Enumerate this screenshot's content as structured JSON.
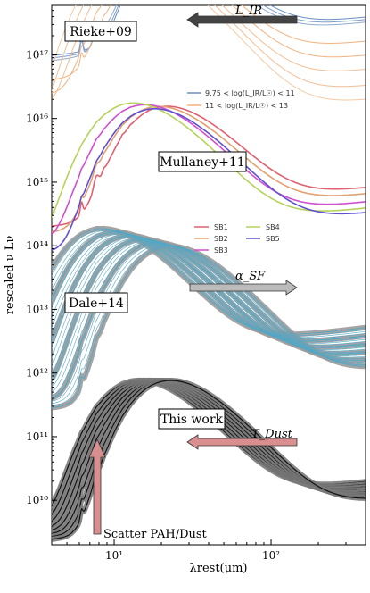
{
  "chart_data": {
    "type": "line",
    "xlabel": "λrest(μm)",
    "ylabel": "rescaled ν Lν",
    "xscale": "log",
    "yscale": "log",
    "xlim": [
      4,
      400
    ],
    "ylim": [
      2000000000.0,
      6e+17
    ],
    "xticks": [
      {
        "value": 10,
        "label": "10¹"
      },
      {
        "value": 100,
        "label": "10²"
      }
    ],
    "yticks": [
      {
        "value": 10000000000.0,
        "label": "10¹⁰"
      },
      {
        "value": 100000000000.0,
        "label": "10¹¹"
      },
      {
        "value": 1000000000000.0,
        "label": "10¹²"
      },
      {
        "value": 10000000000000.0,
        "label": "10¹³"
      },
      {
        "value": 100000000000000.0,
        "label": "10¹⁴"
      },
      {
        "value": 1000000000000000.0,
        "label": "10¹⁵"
      },
      {
        "value": 1e+16,
        "label": "10¹⁶"
      },
      {
        "value": 1e+17,
        "label": "10¹⁷"
      }
    ],
    "panels": [
      {
        "label": "Rieke+09",
        "arrow_label": "L_IR",
        "legend": [
          {
            "label": "9.75 < log(L_IR/L☉) < 11",
            "color": "#6a8ec2"
          },
          {
            "label": "11 < log(L_IR/L☉) < 13",
            "color": "#f2b27e"
          }
        ],
        "series": [
          {
            "color": "#6a8ec2",
            "peak_x": 105,
            "peak_y": 3e+17,
            "mir_y": 1.2e+17
          },
          {
            "color": "#7e9dcb",
            "peak_x": 100,
            "peak_y": 2.8e+17,
            "mir_y": 1.1e+17
          },
          {
            "color": "#8faad2",
            "peak_x": 95,
            "peak_y": 2.7e+17,
            "mir_y": 1e+17
          },
          {
            "color": "#f2b27e",
            "peak_x": 85,
            "peak_y": 2.6e+17,
            "mir_y": 5e+16
          },
          {
            "color": "#f2b27e",
            "peak_x": 75,
            "peak_y": 2.7e+17,
            "mir_y": 3e+16
          },
          {
            "color": "#f4be92",
            "peak_x": 65,
            "peak_y": 2.8e+17,
            "mir_y": 1.8e+16
          },
          {
            "color": "#f4be92",
            "peak_x": 58,
            "peak_y": 2.9e+17,
            "mir_y": 1e+16
          },
          {
            "color": "#f6c9a5",
            "peak_x": 52,
            "peak_y": 3e+17,
            "mir_y": 6000000000000000.0
          }
        ]
      },
      {
        "label": "Mullaney+11",
        "legend": [
          {
            "label": "SB1",
            "color": "#e06070"
          },
          {
            "label": "SB2",
            "color": "#e3a070"
          },
          {
            "label": "SB3",
            "color": "#d04fd0"
          },
          {
            "label": "SB4",
            "color": "#b5d35a"
          },
          {
            "label": "SB5",
            "color": "#6050d0"
          }
        ],
        "series": [
          {
            "name": "SB1",
            "color": "#e06070",
            "peak_x": 90,
            "peak_y": 1400000000000000.0,
            "mir_y": 250000000000000.0
          },
          {
            "name": "SB2",
            "color": "#e3a070",
            "peak_x": 80,
            "peak_y": 1400000000000000.0,
            "mir_y": 200000000000000.0
          },
          {
            "name": "SB3",
            "color": "#d04fd0",
            "peak_x": 65,
            "peak_y": 1500000000000000.0,
            "mir_y": 150000000000000.0
          },
          {
            "name": "SB4",
            "color": "#b5d35a",
            "peak_x": 55,
            "peak_y": 1600000000000000.0,
            "mir_y": 120000000000000.0
          },
          {
            "name": "SB5",
            "color": "#6050d0",
            "peak_x": 75,
            "peak_y": 1300000000000000.0,
            "mir_y": 100000000000000.0
          }
        ]
      },
      {
        "label": "Dale+14",
        "arrow_label": "α_SF",
        "series": [
          {
            "color": "#4fa8c8",
            "peak_x": 35,
            "peak_y": 17000000000000.0,
            "mir_y": 1600000000000.0
          },
          {
            "color": "#4fa8c8",
            "peak_x": 50,
            "peak_y": 13000000000000.0,
            "mir_y": 1000000000000.0
          },
          {
            "color": "#4fa8c8",
            "peak_x": 70,
            "peak_y": 11000000000000.0,
            "mir_y": 600000000000.0
          },
          {
            "color": "#4fa8c8",
            "peak_x": 95,
            "peak_y": 9000000000000.0,
            "mir_y": 350000000000.0
          }
        ]
      },
      {
        "label": "This work",
        "arrow_label": "T_Dust",
        "annotation": "Scatter PAH/Dust",
        "series": [
          {
            "color": "#111111",
            "peak_x": 60,
            "peak_y": 70000000000.0,
            "mir_y": 6000000000.0
          },
          {
            "color": "#111111",
            "peak_x": 70,
            "peak_y": 70000000000.0,
            "mir_y": 5000000000.0
          },
          {
            "color": "#111111",
            "peak_x": 80,
            "peak_y": 70000000000.0,
            "mir_y": 4000000000.0
          },
          {
            "color": "#111111",
            "peak_x": 95,
            "peak_y": 70000000000.0,
            "mir_y": 3000000000.0
          }
        ]
      }
    ]
  }
}
